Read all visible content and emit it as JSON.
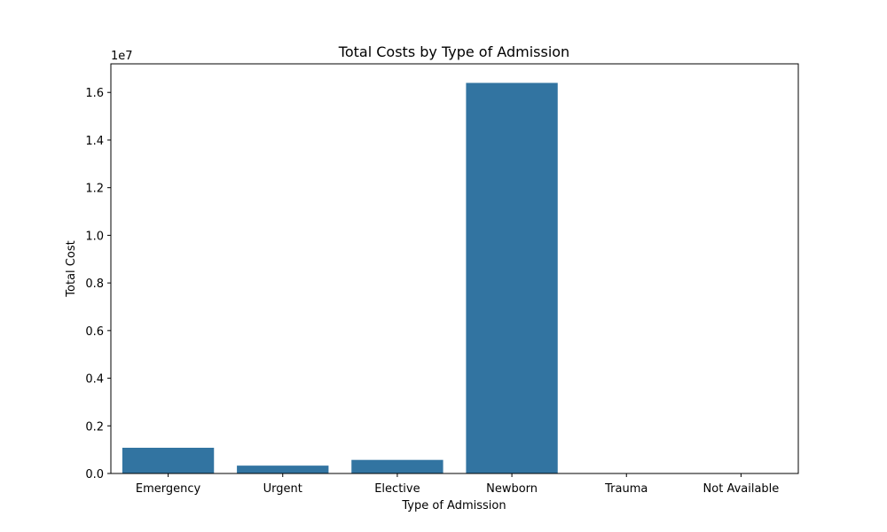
{
  "chart_data": {
    "type": "bar",
    "title": "Total Costs by Type of Admission",
    "xlabel": "Type of Admission",
    "ylabel": "Total Cost",
    "y_offset_label": "1e7",
    "categories": [
      "Emergency",
      "Urgent",
      "Elective",
      "Newborn",
      "Trauma",
      "Not Available"
    ],
    "values": [
      1080000,
      330000,
      570000,
      16400000,
      0,
      0
    ],
    "ylim": [
      0,
      17200000
    ],
    "yticks": [
      0,
      2000000,
      4000000,
      6000000,
      8000000,
      10000000,
      12000000,
      14000000,
      16000000
    ],
    "ytick_labels": [
      "0.0",
      "0.2",
      "0.4",
      "0.6",
      "0.8",
      "1.0",
      "1.2",
      "1.4",
      "1.6"
    ],
    "grid": false,
    "bar_color": "#3274a1"
  }
}
